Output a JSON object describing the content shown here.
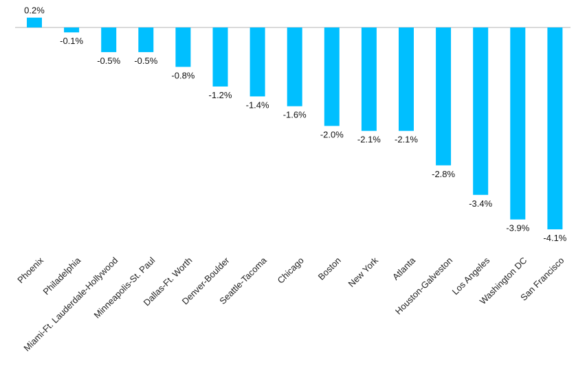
{
  "chart_data": {
    "type": "bar",
    "categories": [
      "Phoenix",
      "Philadelphia",
      "Miami-Ft. Lauderdale-Hollywood",
      "Minneapolis-St. Paul",
      "Dallas-Ft. Worth",
      "Denver-Boulder",
      "Seattle-Tacoma",
      "Chicago",
      "Boston",
      "New York",
      "Atlanta",
      "Houston-Galveston",
      "Los Angeles",
      "Washington DC",
      "San Francisco"
    ],
    "values": [
      0.2,
      -0.1,
      -0.5,
      -0.5,
      -0.8,
      -1.2,
      -1.4,
      -1.6,
      -2.0,
      -2.1,
      -2.1,
      -2.8,
      -3.4,
      -3.9,
      -4.1
    ],
    "value_labels": [
      "0.2%",
      "-0.1%",
      "-0.5%",
      "-0.5%",
      "-0.8%",
      "-1.2%",
      "-1.4%",
      "-1.6%",
      "-2.0%",
      "-2.1%",
      "-2.1%",
      "-2.8%",
      "-3.4%",
      "-3.9%",
      "-4.1%"
    ],
    "bar_color": "#00bfff",
    "grid": false
  }
}
